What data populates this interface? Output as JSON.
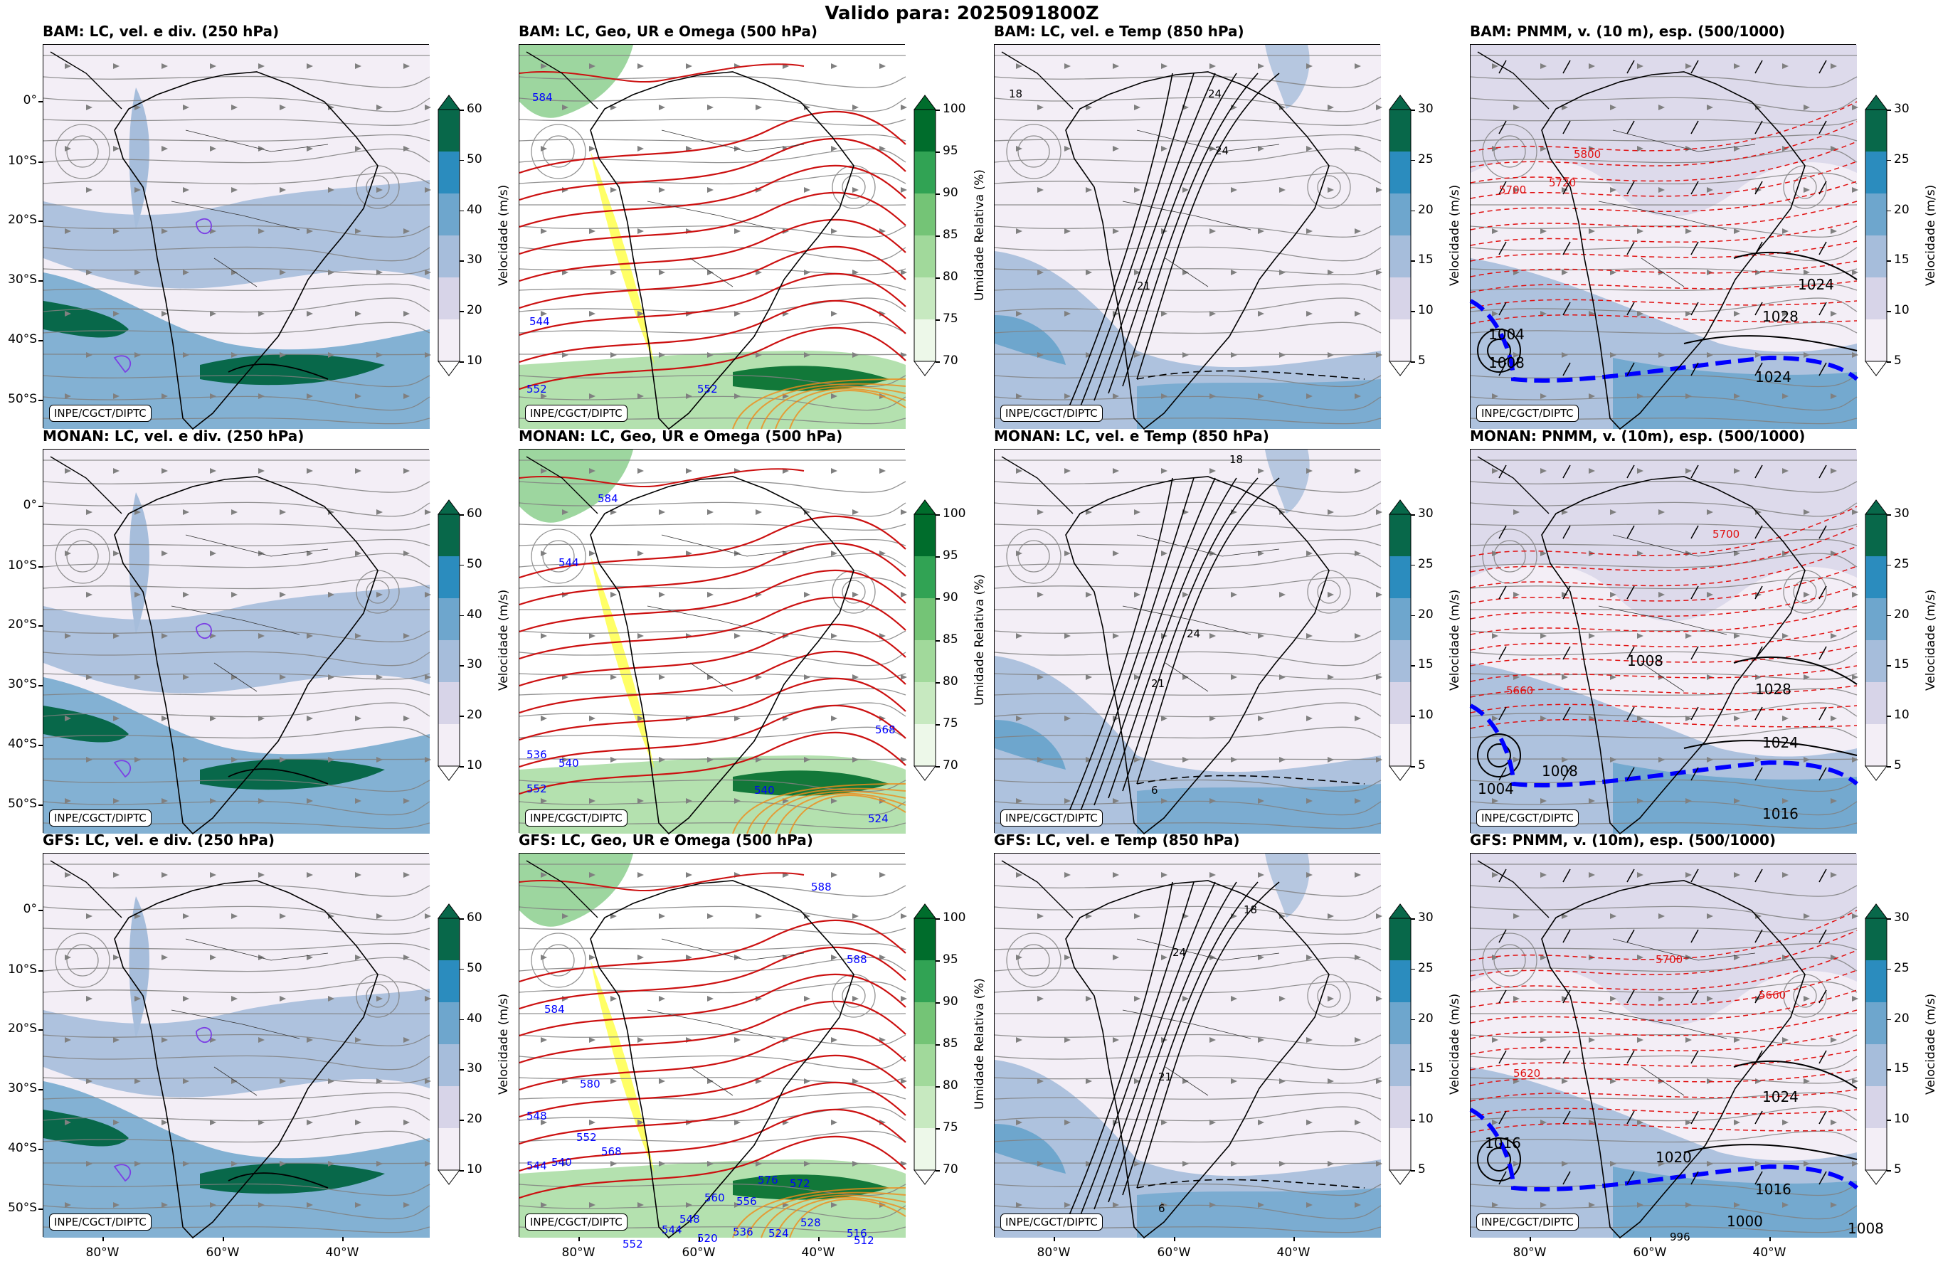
{
  "suptitle": "Valido para: 2025091800Z",
  "credit": "INPE/CGCT/DIPTC",
  "rows": [
    {
      "model": "BAM",
      "titles": [
        "BAM: LC, vel. e div. (250 hPa)",
        "BAM: LC, Geo, UR e Omega (500 hPa)",
        "BAM: LC, vel. e Temp (850 hPa)",
        "BAM: PNMM, v. (10 m), esp. (500/1000)"
      ]
    },
    {
      "model": "MONAN",
      "titles": [
        "MONAN: LC, vel. e div. (250 hPa)",
        "MONAN: LC, Geo, UR e Omega (500 hPa)",
        "MONAN: LC, vel. e Temp (850 hPa)",
        "MONAN: PNMM, v. (10m), esp. (500/1000)"
      ]
    },
    {
      "model": "GFS",
      "titles": [
        "GFS: LC, vel. e div. (250 hPa)",
        "GFS: LC, Geo, UR e Omega (500 hPa)",
        "GFS: LC, vel. e Temp (850 hPa)",
        "GFS: PNMM, v. (10m), esp. (500/1000)"
      ]
    }
  ],
  "lat_labels": [
    "0°",
    "10°S",
    "20°S",
    "30°S",
    "40°S",
    "50°S"
  ],
  "lon_labels": [
    "80°W",
    "60°W",
    "40°W"
  ],
  "colorbars": [
    {
      "label": "Velocidade (m/s)",
      "ticks": [
        "60",
        "50",
        "40",
        "30",
        "20",
        "10"
      ],
      "colors": [
        "#08684a",
        "#2b8cbe",
        "#6ea6cd",
        "#a6bddb",
        "#d7d4e8",
        "#f3eef6"
      ]
    },
    {
      "label": "Umidade Relativa (%)",
      "ticks": [
        "100",
        "95",
        "90",
        "85",
        "80",
        "75",
        "70"
      ],
      "colors": [
        "#006d2c",
        "#31a354",
        "#74c476",
        "#a1d99b",
        "#c7e9c0",
        "#edf8e9"
      ]
    },
    {
      "label": "Velocidade (m/s)",
      "ticks": [
        "30",
        "25",
        "20",
        "15",
        "10",
        "5"
      ],
      "colors": [
        "#08684a",
        "#2b8cbe",
        "#6ea6cd",
        "#a6bddb",
        "#d7d4e8",
        "#f3eef6"
      ]
    },
    {
      "label": "Velocidade (m/s)",
      "ticks": [
        "30",
        "25",
        "20",
        "15",
        "10",
        "5"
      ],
      "colors": [
        "#08684a",
        "#2b8cbe",
        "#6ea6cd",
        "#a6bddb",
        "#d7d4e8",
        "#f3eef6"
      ]
    }
  ],
  "contour_labels": {
    "r0c1": [
      "584",
      "544",
      "552",
      "552"
    ],
    "r1c1": [
      "584",
      "544",
      "536",
      "540",
      "552",
      "540",
      "524",
      "568"
    ],
    "r2c1": [
      "588",
      "588",
      "584",
      "580",
      "548",
      "552",
      "568",
      "540",
      "544",
      "576",
      "572",
      "560",
      "556",
      "548",
      "536",
      "528",
      "524",
      "520",
      "516",
      "512",
      "544",
      "552"
    ],
    "r0c3": [
      "5800",
      "5720",
      "5700",
      "1004",
      "1008",
      "1024",
      "1028",
      "1024"
    ],
    "r1c3": [
      "5700",
      "5660",
      "1008",
      "1028",
      "1024",
      "1004",
      "1016",
      "1008"
    ],
    "r2c3": [
      "5700",
      "5660",
      "5620",
      "1016",
      "1024",
      "1020",
      "1016",
      "1000",
      "996",
      "1008"
    ],
    "r0c2": [
      "18",
      "24",
      "24",
      "21"
    ],
    "r1c2": [
      "18",
      "24",
      "21",
      "6"
    ],
    "r2c2": [
      "18",
      "24",
      "21",
      "6"
    ]
  },
  "palette": {
    "streamline": "#808080",
    "coast": "#000000",
    "geo": "#cc1111",
    "omega": "#ffff00",
    "thickness_warm": "#e01010",
    "thickness_cold": "#0000ff"
  }
}
